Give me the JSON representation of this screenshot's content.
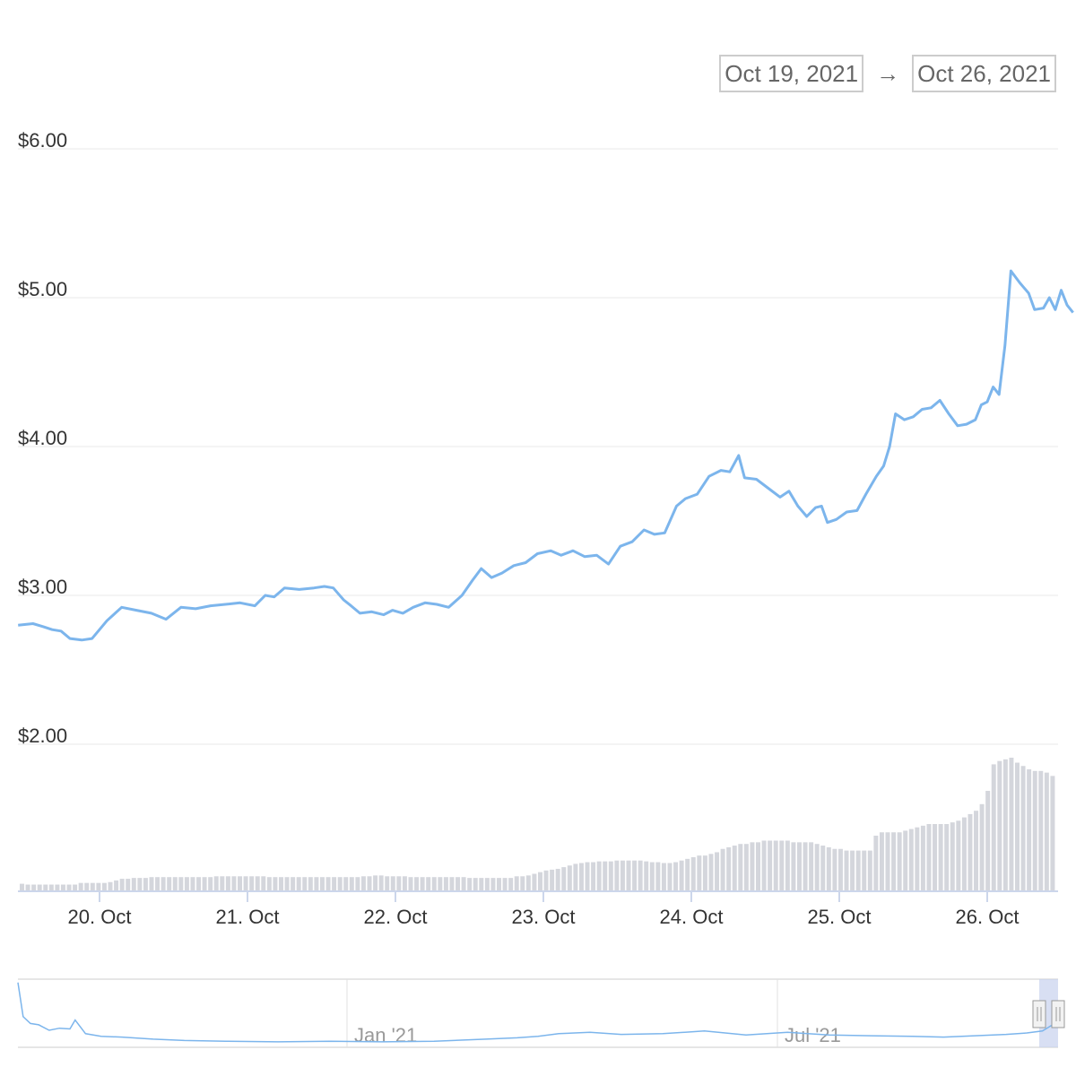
{
  "range": {
    "from": "Oct 19, 2021",
    "arrow": "→",
    "to": "Oct 26, 2021"
  },
  "colors": {
    "line": "#7cb5ec",
    "volume": "#d4d6dc",
    "grid": "#e8e8e8",
    "axis": "#ccd6eb",
    "navigator_mask": "#c8d2ee"
  },
  "chart_data": {
    "type": "line",
    "title": "",
    "xlabel": "",
    "ylabel": "",
    "ylim": [
      1.0,
      6.0
    ],
    "yticks": [
      "$2.00",
      "$3.00",
      "$4.00",
      "$5.00",
      "$6.00"
    ],
    "ytick_values": [
      2,
      3,
      4,
      5,
      6
    ],
    "xticks": [
      "20. Oct",
      "21. Oct",
      "22. Oct",
      "23. Oct",
      "24. Oct",
      "25. Oct",
      "26. Oct"
    ],
    "xtick_days": [
      20,
      21,
      22,
      23,
      24,
      25,
      26
    ],
    "x_start_day": 19.45,
    "x_end_day": 26.5,
    "series": [
      {
        "points": [
          [
            19.45,
            2.8
          ],
          [
            19.55,
            2.81
          ],
          [
            19.62,
            2.79
          ],
          [
            19.68,
            2.77
          ],
          [
            19.74,
            2.76
          ],
          [
            19.8,
            2.71
          ],
          [
            19.88,
            2.7
          ],
          [
            19.95,
            2.71
          ],
          [
            20.05,
            2.83
          ],
          [
            20.15,
            2.92
          ],
          [
            20.25,
            2.9
          ],
          [
            20.35,
            2.88
          ],
          [
            20.45,
            2.84
          ],
          [
            20.55,
            2.92
          ],
          [
            20.65,
            2.91
          ],
          [
            20.75,
            2.93
          ],
          [
            20.85,
            2.94
          ],
          [
            20.95,
            2.95
          ],
          [
            21.05,
            2.93
          ],
          [
            21.12,
            3.0
          ],
          [
            21.18,
            2.99
          ],
          [
            21.25,
            3.05
          ],
          [
            21.35,
            3.04
          ],
          [
            21.45,
            3.05
          ],
          [
            21.52,
            3.06
          ],
          [
            21.58,
            3.05
          ],
          [
            21.65,
            2.97
          ],
          [
            21.7,
            2.93
          ],
          [
            21.76,
            2.88
          ],
          [
            21.84,
            2.89
          ],
          [
            21.92,
            2.87
          ],
          [
            21.98,
            2.9
          ],
          [
            22.05,
            2.88
          ],
          [
            22.12,
            2.92
          ],
          [
            22.2,
            2.95
          ],
          [
            22.28,
            2.94
          ],
          [
            22.36,
            2.92
          ],
          [
            22.45,
            3.0
          ],
          [
            22.52,
            3.1
          ],
          [
            22.58,
            3.18
          ],
          [
            22.65,
            3.12
          ],
          [
            22.72,
            3.15
          ],
          [
            22.8,
            3.2
          ],
          [
            22.88,
            3.22
          ],
          [
            22.96,
            3.28
          ],
          [
            23.05,
            3.3
          ],
          [
            23.12,
            3.27
          ],
          [
            23.2,
            3.3
          ],
          [
            23.28,
            3.26
          ],
          [
            23.36,
            3.27
          ],
          [
            23.44,
            3.21
          ],
          [
            23.52,
            3.33
          ],
          [
            23.6,
            3.36
          ],
          [
            23.68,
            3.44
          ],
          [
            23.75,
            3.41
          ],
          [
            23.82,
            3.42
          ],
          [
            23.9,
            3.6
          ],
          [
            23.96,
            3.65
          ],
          [
            24.04,
            3.68
          ],
          [
            24.12,
            3.8
          ],
          [
            24.2,
            3.84
          ],
          [
            24.26,
            3.83
          ],
          [
            24.32,
            3.94
          ],
          [
            24.36,
            3.79
          ],
          [
            24.44,
            3.78
          ],
          [
            24.52,
            3.72
          ],
          [
            24.6,
            3.66
          ],
          [
            24.66,
            3.7
          ],
          [
            24.72,
            3.6
          ],
          [
            24.78,
            3.53
          ],
          [
            24.84,
            3.59
          ],
          [
            24.88,
            3.6
          ],
          [
            24.92,
            3.49
          ],
          [
            24.98,
            3.51
          ],
          [
            25.05,
            3.56
          ],
          [
            25.12,
            3.57
          ],
          [
            25.18,
            3.68
          ],
          [
            25.25,
            3.8
          ],
          [
            25.3,
            3.87
          ],
          [
            25.34,
            4.0
          ],
          [
            25.38,
            4.22
          ],
          [
            25.44,
            4.18
          ],
          [
            25.5,
            4.2
          ],
          [
            25.56,
            4.25
          ],
          [
            25.62,
            4.26
          ],
          [
            25.68,
            4.31
          ],
          [
            25.74,
            4.22
          ],
          [
            25.8,
            4.14
          ],
          [
            25.86,
            4.15
          ],
          [
            25.92,
            4.18
          ],
          [
            25.96,
            4.28
          ],
          [
            26.0,
            4.3
          ],
          [
            26.04,
            4.4
          ],
          [
            26.08,
            4.35
          ],
          [
            26.12,
            4.68
          ],
          [
            26.16,
            5.18
          ],
          [
            26.22,
            5.1
          ],
          [
            26.28,
            5.03
          ],
          [
            26.32,
            4.92
          ],
          [
            26.38,
            4.93
          ],
          [
            26.42,
            5.0
          ],
          [
            26.46,
            4.92
          ],
          [
            26.5,
            5.05
          ],
          [
            26.54,
            4.95
          ],
          [
            26.58,
            4.9
          ]
        ]
      }
    ],
    "volume_relative": [
      0.04,
      0.035,
      0.035,
      0.035,
      0.035,
      0.035,
      0.035,
      0.035,
      0.035,
      0.035,
      0.045,
      0.045,
      0.045,
      0.045,
      0.045,
      0.05,
      0.06,
      0.07,
      0.07,
      0.075,
      0.075,
      0.075,
      0.08,
      0.08,
      0.08,
      0.08,
      0.08,
      0.08,
      0.08,
      0.08,
      0.08,
      0.08,
      0.08,
      0.085,
      0.085,
      0.085,
      0.085,
      0.085,
      0.085,
      0.085,
      0.085,
      0.085,
      0.08,
      0.08,
      0.08,
      0.08,
      0.08,
      0.08,
      0.08,
      0.08,
      0.08,
      0.08,
      0.08,
      0.08,
      0.08,
      0.08,
      0.08,
      0.08,
      0.085,
      0.085,
      0.09,
      0.09,
      0.085,
      0.085,
      0.085,
      0.085,
      0.08,
      0.08,
      0.08,
      0.08,
      0.08,
      0.08,
      0.08,
      0.08,
      0.08,
      0.08,
      0.075,
      0.075,
      0.075,
      0.075,
      0.075,
      0.075,
      0.075,
      0.075,
      0.085,
      0.085,
      0.09,
      0.1,
      0.11,
      0.12,
      0.125,
      0.13,
      0.14,
      0.15,
      0.16,
      0.165,
      0.17,
      0.17,
      0.175,
      0.175,
      0.175,
      0.18,
      0.18,
      0.18,
      0.18,
      0.18,
      0.175,
      0.17,
      0.17,
      0.165,
      0.165,
      0.17,
      0.18,
      0.19,
      0.2,
      0.21,
      0.21,
      0.22,
      0.23,
      0.25,
      0.26,
      0.27,
      0.28,
      0.28,
      0.29,
      0.29,
      0.3,
      0.3,
      0.3,
      0.3,
      0.3,
      0.29,
      0.29,
      0.29,
      0.29,
      0.28,
      0.27,
      0.26,
      0.25,
      0.25,
      0.24,
      0.24,
      0.24,
      0.24,
      0.24,
      0.33,
      0.35,
      0.35,
      0.35,
      0.35,
      0.36,
      0.37,
      0.38,
      0.39,
      0.4,
      0.4,
      0.4,
      0.4,
      0.41,
      0.42,
      0.44,
      0.46,
      0.48,
      0.52,
      0.6,
      0.76,
      0.78,
      0.79,
      0.8,
      0.77,
      0.75,
      0.73,
      0.72,
      0.72,
      0.71,
      0.69
    ],
    "navigator": {
      "labels": [
        "Jan '21",
        "Jul '21"
      ],
      "points": [
        [
          0.0,
          0.95
        ],
        [
          0.005,
          0.45
        ],
        [
          0.012,
          0.35
        ],
        [
          0.02,
          0.33
        ],
        [
          0.03,
          0.25
        ],
        [
          0.04,
          0.28
        ],
        [
          0.05,
          0.27
        ],
        [
          0.055,
          0.4
        ],
        [
          0.065,
          0.2
        ],
        [
          0.08,
          0.16
        ],
        [
          0.1,
          0.15
        ],
        [
          0.13,
          0.12
        ],
        [
          0.16,
          0.1
        ],
        [
          0.2,
          0.09
        ],
        [
          0.25,
          0.08
        ],
        [
          0.3,
          0.09
        ],
        [
          0.35,
          0.08
        ],
        [
          0.4,
          0.09
        ],
        [
          0.45,
          0.12
        ],
        [
          0.48,
          0.14
        ],
        [
          0.5,
          0.16
        ],
        [
          0.52,
          0.2
        ],
        [
          0.55,
          0.22
        ],
        [
          0.58,
          0.19
        ],
        [
          0.62,
          0.2
        ],
        [
          0.66,
          0.24
        ],
        [
          0.7,
          0.18
        ],
        [
          0.74,
          0.22
        ],
        [
          0.78,
          0.18
        ],
        [
          0.82,
          0.17
        ],
        [
          0.86,
          0.16
        ],
        [
          0.89,
          0.15
        ],
        [
          0.92,
          0.17
        ],
        [
          0.95,
          0.19
        ],
        [
          0.97,
          0.21
        ],
        [
          0.985,
          0.24
        ],
        [
          1.0,
          0.38
        ]
      ]
    }
  }
}
